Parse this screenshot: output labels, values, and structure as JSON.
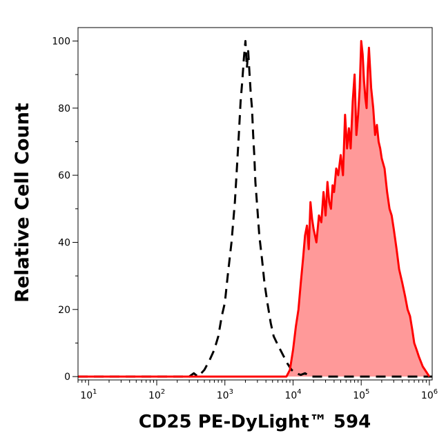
{
  "chart_data": {
    "type": "area",
    "title": "",
    "xlabel": "CD25 PE-DyLight™ 594",
    "ylabel": "Relative Cell Count",
    "x_scale": "log",
    "xlim": [
      7,
      1100000.0
    ],
    "ylim": [
      -1,
      104
    ],
    "grid": false,
    "legend": "none",
    "x_ticks": [
      {
        "base": "10",
        "exp": "1",
        "value": 10
      },
      {
        "base": "10",
        "exp": "2",
        "value": 100
      },
      {
        "base": "10",
        "exp": "3",
        "value": 1000
      },
      {
        "base": "10",
        "exp": "4",
        "value": 10000
      },
      {
        "base": "10",
        "exp": "5",
        "value": 100000
      },
      {
        "base": "10",
        "exp": "6",
        "value": 1000000
      }
    ],
    "y_ticks": [
      "0",
      "20",
      "40",
      "60",
      "80",
      "100"
    ],
    "series": [
      {
        "style": "dashed",
        "color": "#000000",
        "fill": "none",
        "x": [
          7,
          100,
          300,
          350,
          400,
          450,
          500,
          600,
          700,
          800,
          900,
          1000,
          1100,
          1250,
          1400,
          1500,
          1600,
          1700,
          1800,
          1900,
          2000,
          2100,
          2200,
          2300,
          2400,
          2500,
          2600,
          2700,
          2800,
          3000,
          3200,
          3500,
          3800,
          4200,
          4700,
          5200,
          5800,
          6500,
          7300,
          8200,
          9500,
          11000,
          13000,
          15000,
          18000,
          100000,
          1100000
        ],
        "y": [
          0,
          0,
          0,
          1,
          0,
          1,
          2,
          5,
          8,
          12,
          18,
          22,
          30,
          40,
          52,
          62,
          72,
          82,
          88,
          95,
          100,
          92,
          97,
          90,
          84,
          80,
          72,
          66,
          58,
          50,
          42,
          35,
          28,
          22,
          16,
          12,
          10,
          8,
          6,
          4,
          2,
          1,
          0.5,
          1,
          0,
          0,
          0
        ]
      },
      {
        "style": "solid",
        "color": "#ff0000",
        "fill": "#ff9999",
        "x": [
          7,
          8000,
          9000,
          10000,
          11000,
          12000,
          13000,
          14000,
          15000,
          16000,
          17000,
          18000,
          19000,
          20000,
          22000,
          24000,
          26000,
          28000,
          30000,
          32000,
          34000,
          36000,
          38000,
          40000,
          43000,
          46000,
          50000,
          54000,
          58000,
          62000,
          66000,
          70000,
          75000,
          80000,
          85000,
          90000,
          95000,
          100000,
          105000,
          110000,
          115000,
          120000,
          125000,
          130000,
          140000,
          150000,
          160000,
          170000,
          180000,
          190000,
          200000,
          220000,
          240000,
          260000,
          280000,
          300000,
          330000,
          360000,
          400000,
          440000,
          480000,
          520000,
          560000,
          600000,
          650000,
          700000,
          800000,
          1000000
        ],
        "y": [
          0,
          0,
          2,
          8,
          15,
          20,
          28,
          35,
          42,
          45,
          38,
          52,
          47,
          44,
          40,
          48,
          46,
          55,
          48,
          58,
          52,
          50,
          57,
          55,
          62,
          60,
          66,
          60,
          78,
          68,
          74,
          68,
          82,
          90,
          72,
          78,
          86,
          100,
          96,
          88,
          83,
          80,
          92,
          98,
          86,
          80,
          72,
          75,
          70,
          68,
          65,
          62,
          55,
          50,
          48,
          44,
          38,
          32,
          28,
          24,
          20,
          18,
          14,
          10,
          8,
          6,
          3,
          0
        ]
      }
    ]
  }
}
